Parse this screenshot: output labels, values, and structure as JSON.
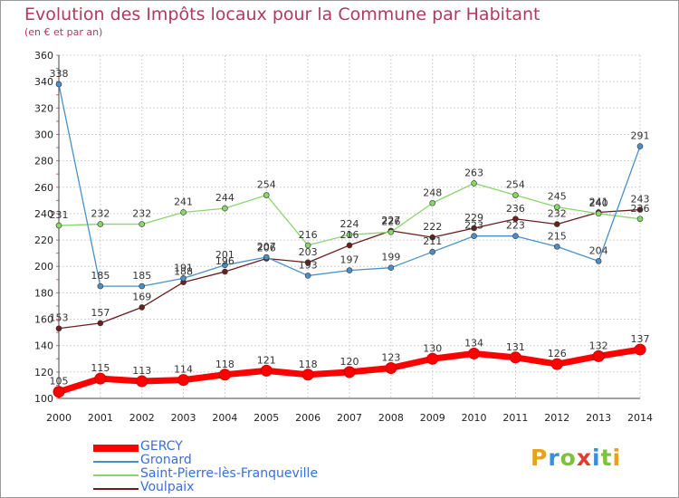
{
  "title": "Evolution des Impôts locaux pour la Commune par Habitant",
  "subtitle": "(en € et par an)",
  "brand": {
    "letters": [
      "P",
      "r",
      "o",
      "x",
      "i",
      "t",
      "i"
    ],
    "colors": [
      "#e8a21a",
      "#3b8fd6",
      "#7cc23a",
      "#e03c31",
      "#3b8fd6",
      "#7cc23a",
      "#e8a21a"
    ]
  },
  "chart_data": {
    "type": "line",
    "x": [
      2000,
      2001,
      2002,
      2003,
      2004,
      2005,
      2006,
      2007,
      2008,
      2009,
      2010,
      2011,
      2012,
      2013,
      2014
    ],
    "ylim": [
      100,
      360
    ],
    "yticks": [
      100,
      120,
      140,
      160,
      180,
      200,
      220,
      240,
      260,
      280,
      300,
      320,
      340,
      360
    ],
    "grid": true,
    "legend_position": "bottom-left",
    "series": [
      {
        "name": "GERCY",
        "color": "#ff0000",
        "values": [
          105,
          115,
          113,
          114,
          118,
          121,
          118,
          120,
          123,
          130,
          134,
          131,
          126,
          132,
          137
        ]
      },
      {
        "name": "Gronard",
        "color": "#4a90c8",
        "values": [
          338,
          185,
          185,
          191,
          201,
          207,
          193,
          197,
          199,
          211,
          223,
          223,
          215,
          204,
          291
        ]
      },
      {
        "name": "Saint-Pierre-lès-Franqueville",
        "color": "#88d66a",
        "values": [
          231,
          232,
          232,
          241,
          244,
          254,
          216,
          224,
          226,
          248,
          263,
          254,
          245,
          240,
          236
        ]
      },
      {
        "name": "Voulpaix",
        "color": "#6b1f1f",
        "values": [
          153,
          157,
          169,
          188,
          196,
          206,
          203,
          216,
          227,
          222,
          229,
          236,
          232,
          241,
          243
        ]
      }
    ]
  }
}
